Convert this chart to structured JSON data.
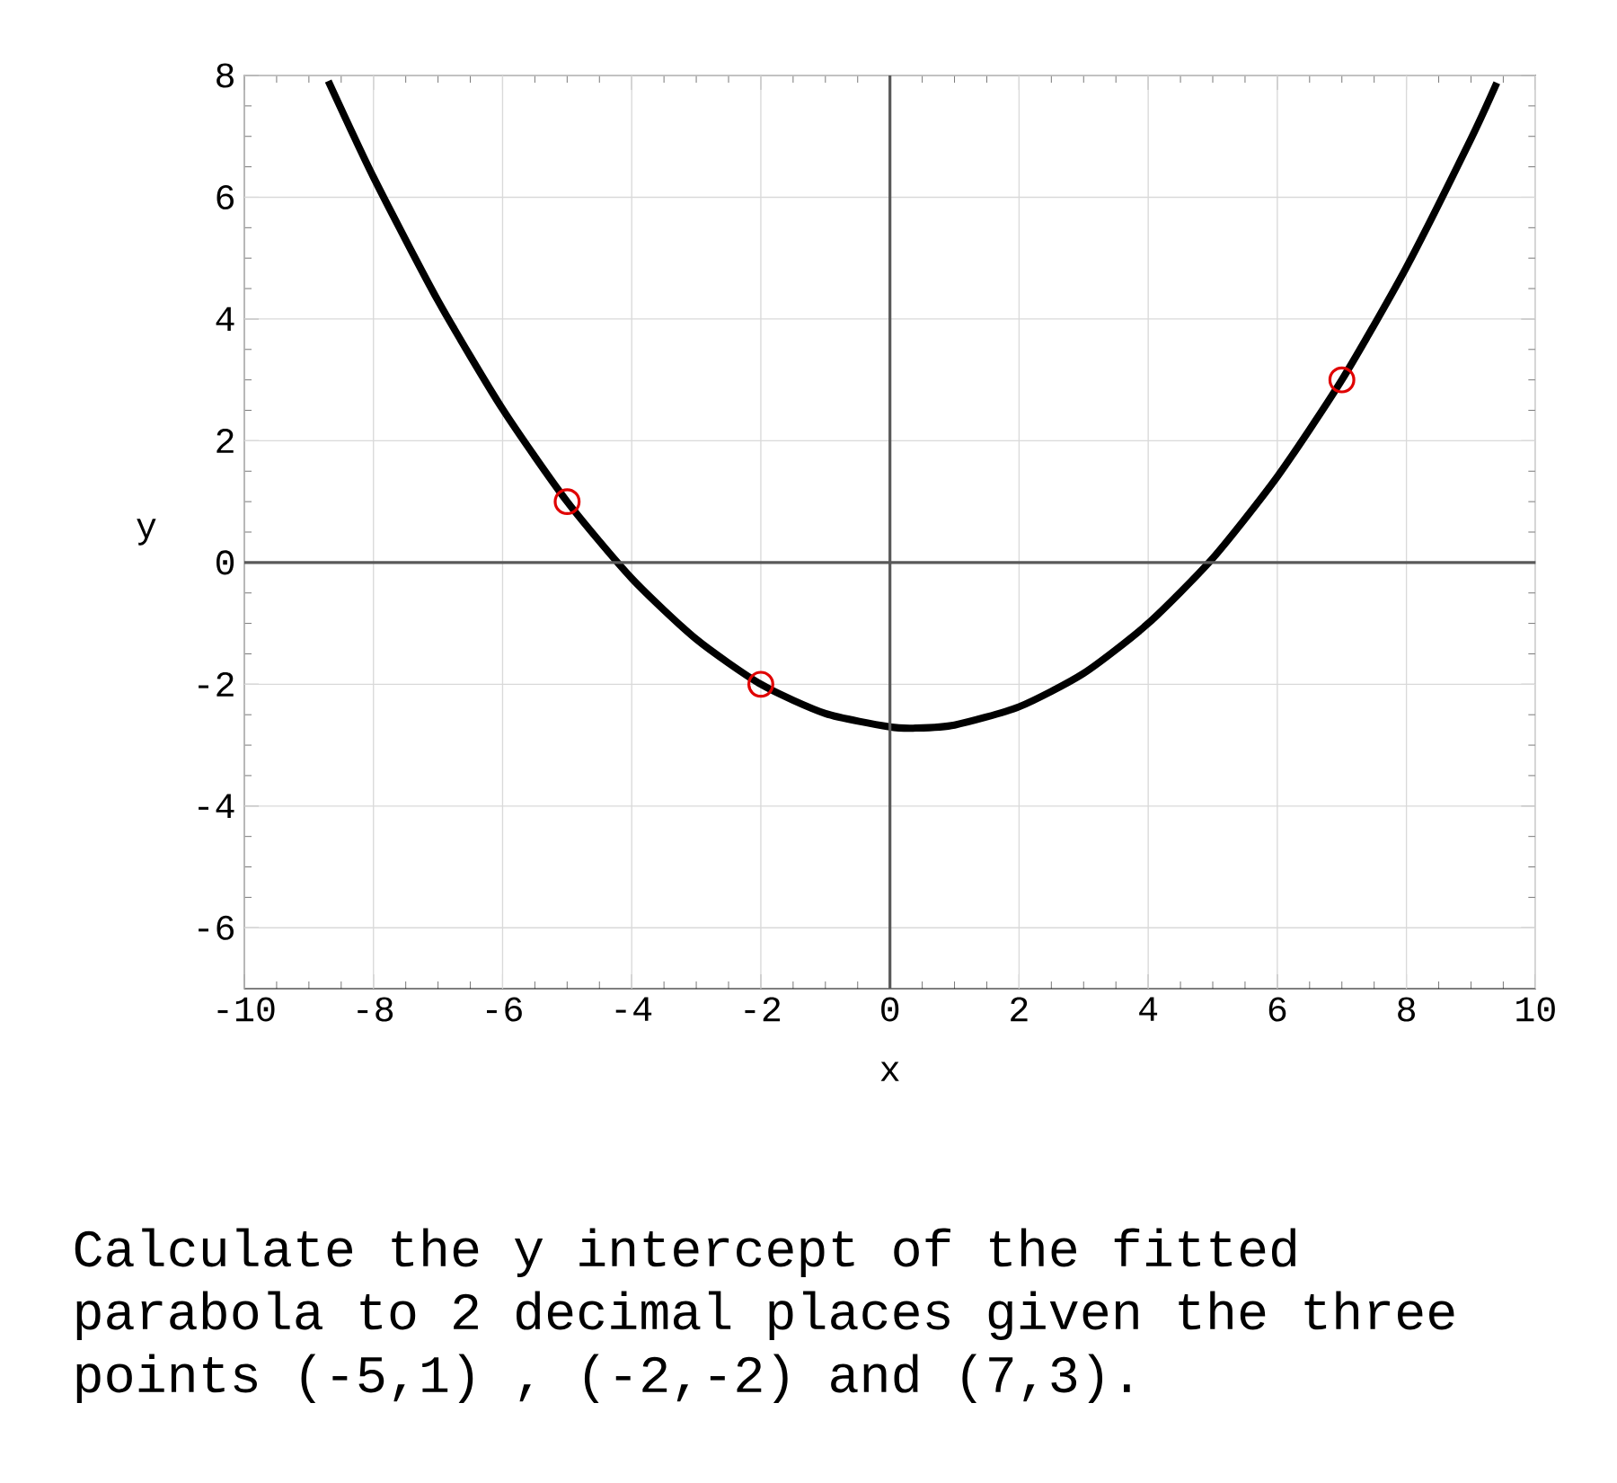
{
  "chart_data": {
    "type": "line",
    "xlabel": "x",
    "ylabel": "y",
    "xlim": [
      -10,
      10
    ],
    "xticks": [
      -10,
      -8,
      -6,
      -4,
      -2,
      0,
      2,
      4,
      6,
      8,
      10
    ],
    "ylim": [
      -7,
      8
    ],
    "yticks": [
      -6,
      -4,
      -2,
      0,
      2,
      4,
      6,
      8
    ],
    "grid": true,
    "series": [
      {
        "color": "#000000",
        "marker": "none",
        "x": [
          -8.7,
          -8,
          -7,
          -6,
          -5,
          -4,
          -3,
          -2,
          -1,
          0,
          0.4,
          1,
          2,
          3,
          4,
          5,
          6,
          7,
          8,
          9,
          9.4
        ],
        "values": [
          7.91,
          6.33,
          4.3,
          2.52,
          1.0,
          -0.26,
          -1.26,
          -2.0,
          -2.48,
          -2.7,
          -2.72,
          -2.67,
          -2.37,
          -1.82,
          -1.0,
          0.07,
          1.41,
          3.0,
          4.85,
          6.96,
          7.88
        ]
      },
      {
        "type": "scatter",
        "color": "#e00000",
        "marker": "circle",
        "x": [
          -5,
          -2,
          7
        ],
        "values": [
          1,
          -2,
          3
        ]
      }
    ],
    "annotations": [
      "Calculate the y intercept of the fitted parabola to 2 decimal places given the three points (-5,1) , (-2,-2) and (7,3)."
    ]
  }
}
